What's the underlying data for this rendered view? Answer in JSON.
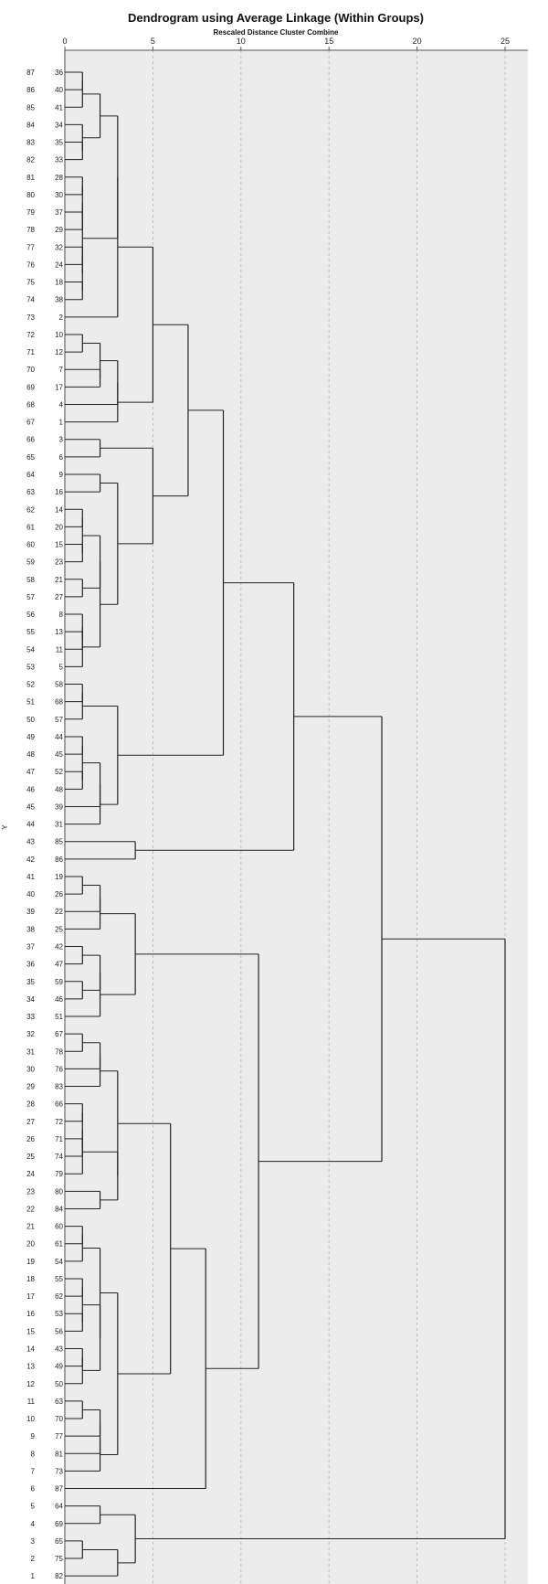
{
  "chart_data": {
    "type": "dendrogram",
    "title": "Dendrogram using Average Linkage (Within Groups)",
    "subtitle": "Rescaled Distance Cluster Combine",
    "xlabel": "Rescaled Distance Cluster Combine",
    "ylabel": "Y",
    "xlim": [
      0,
      25
    ],
    "x_ticks": [
      0,
      5,
      10,
      15,
      20,
      25
    ],
    "grid": true,
    "y_positions": [
      87,
      86,
      85,
      84,
      83,
      82,
      81,
      80,
      79,
      78,
      77,
      76,
      75,
      74,
      73,
      72,
      71,
      70,
      69,
      68,
      67,
      66,
      65,
      64,
      63,
      62,
      61,
      60,
      59,
      58,
      57,
      56,
      55,
      54,
      53,
      52,
      51,
      50,
      49,
      48,
      47,
      46,
      45,
      44,
      43,
      42,
      41,
      40,
      39,
      38,
      37,
      36,
      35,
      34,
      33,
      32,
      31,
      30,
      29,
      28,
      27,
      26,
      25,
      24,
      23,
      22,
      21,
      20,
      19,
      18,
      17,
      16,
      15,
      14,
      13,
      12,
      11,
      10,
      9,
      8,
      7,
      6,
      5,
      4,
      3,
      2,
      1
    ],
    "leaf_order": [
      36,
      40,
      41,
      34,
      35,
      33,
      28,
      30,
      37,
      29,
      32,
      24,
      18,
      38,
      2,
      10,
      12,
      7,
      17,
      4,
      1,
      3,
      6,
      9,
      16,
      14,
      20,
      15,
      23,
      21,
      27,
      8,
      13,
      11,
      5,
      58,
      68,
      57,
      44,
      45,
      52,
      48,
      39,
      31,
      85,
      86,
      19,
      26,
      22,
      25,
      42,
      47,
      59,
      46,
      51,
      67,
      78,
      76,
      83,
      66,
      72,
      71,
      74,
      79,
      80,
      84,
      60,
      61,
      54,
      55,
      62,
      53,
      56,
      43,
      49,
      50,
      63,
      70,
      77,
      81,
      73,
      87,
      64,
      69,
      65,
      75,
      82
    ]
  }
}
